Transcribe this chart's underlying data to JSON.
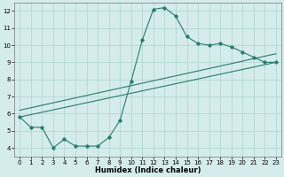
{
  "xlabel": "Humidex (Indice chaleur)",
  "ylabel": "",
  "xlim": [
    -0.5,
    23.5
  ],
  "ylim": [
    3.5,
    12.5
  ],
  "xticks": [
    0,
    1,
    2,
    3,
    4,
    5,
    6,
    7,
    8,
    9,
    10,
    11,
    12,
    13,
    14,
    15,
    16,
    17,
    18,
    19,
    20,
    21,
    22,
    23
  ],
  "yticks": [
    4,
    5,
    6,
    7,
    8,
    9,
    10,
    11,
    12
  ],
  "line_color": "#2a7b6f",
  "bg_color": "#d4eceb",
  "grid_color": "#aed4d0",
  "line1_x": [
    0,
    1,
    2,
    3,
    4,
    5,
    6,
    7,
    8,
    9,
    10,
    11,
    12,
    13,
    14,
    15,
    16,
    17,
    18,
    19,
    20,
    21,
    22,
    23
  ],
  "line1_y": [
    5.8,
    5.2,
    5.2,
    4.0,
    4.5,
    4.1,
    4.1,
    4.1,
    4.6,
    5.6,
    7.9,
    10.3,
    12.1,
    12.2,
    11.7,
    10.5,
    10.1,
    10.0,
    10.1,
    9.9,
    9.6,
    9.3,
    9.0,
    9.0
  ],
  "line2_x": [
    0,
    23
  ],
  "line2_y": [
    5.8,
    9.0
  ],
  "line3_x": [
    0,
    23
  ],
  "line3_y": [
    6.2,
    9.5
  ]
}
